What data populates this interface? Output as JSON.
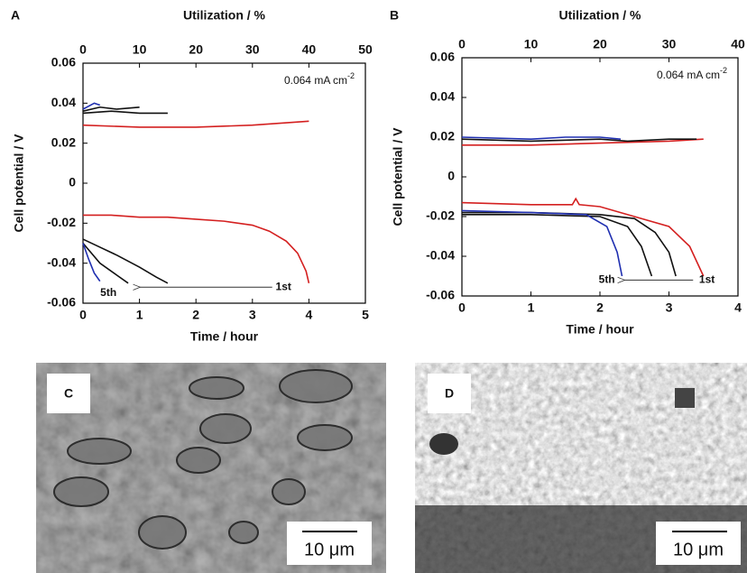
{
  "chart_data": [
    {
      "type": "line",
      "panel": "A",
      "x2_label": "Utilization / %",
      "x_label": "Time / hour",
      "y_label": "Cell potential / V",
      "current_density": {
        "text": "0.064 mA cm",
        "superscript": "-2"
      },
      "annotations": [
        "5th",
        "1st"
      ],
      "xlim": [
        0,
        5
      ],
      "xticks": [
        0,
        1,
        2,
        3,
        4,
        5
      ],
      "x2lim": [
        0,
        50
      ],
      "x2ticks": [
        0,
        10,
        20,
        30,
        40,
        50
      ],
      "ylim": [
        -0.06,
        0.06
      ],
      "yticks": [
        0.06,
        0.04,
        0.02,
        0,
        -0.02,
        -0.04,
        -0.06
      ],
      "series": [
        {
          "color": "#d42020",
          "x": [
            0,
            0.5,
            1,
            1.5,
            2,
            2.5,
            3,
            3.3,
            3.6,
            3.8,
            3.95,
            4
          ],
          "values": [
            -0.016,
            -0.016,
            -0.017,
            -0.017,
            -0.018,
            -0.019,
            -0.021,
            -0.024,
            -0.029,
            -0.035,
            -0.044,
            -0.05
          ]
        },
        {
          "color": "#d42020",
          "x": [
            0,
            1,
            2,
            3,
            4
          ],
          "values": [
            0.029,
            0.028,
            0.028,
            0.029,
            0.031
          ]
        },
        {
          "color": "#111111",
          "x": [
            0,
            0.3,
            0.6,
            1,
            1.3,
            1.5
          ],
          "values": [
            -0.028,
            -0.032,
            -0.036,
            -0.042,
            -0.047,
            -0.05
          ]
        },
        {
          "color": "#111111",
          "x": [
            0,
            0.5,
            1,
            1.5
          ],
          "values": [
            0.035,
            0.036,
            0.035,
            0.035
          ]
        },
        {
          "color": "#111111",
          "x": [
            0,
            0.3,
            0.6,
            0.8
          ],
          "values": [
            -0.03,
            -0.04,
            -0.046,
            -0.05
          ]
        },
        {
          "color": "#111111",
          "x": [
            0,
            0.3,
            0.6,
            1
          ],
          "values": [
            0.036,
            0.038,
            0.037,
            0.038
          ]
        },
        {
          "color": "#1f2fb0",
          "x": [
            0,
            0.1,
            0.2,
            0.3
          ],
          "values": [
            -0.03,
            -0.038,
            -0.045,
            -0.049
          ]
        },
        {
          "color": "#1f2fb0",
          "x": [
            0,
            0.2,
            0.3
          ],
          "values": [
            0.037,
            0.04,
            0.039
          ]
        }
      ]
    },
    {
      "type": "line",
      "panel": "B",
      "x2_label": "Utilization / %",
      "x_label": "Time / hour",
      "y_label": "Cell potential / V",
      "current_density": {
        "text": "0.064 mA cm",
        "superscript": "-2"
      },
      "annotations": [
        "5th",
        "1st"
      ],
      "xlim": [
        0,
        4
      ],
      "xticks": [
        0,
        1,
        2,
        3,
        4
      ],
      "x2lim": [
        0,
        40
      ],
      "x2ticks": [
        0,
        10,
        20,
        30,
        40
      ],
      "ylim": [
        -0.06,
        0.06
      ],
      "yticks": [
        0.06,
        0.04,
        0.02,
        0,
        -0.02,
        -0.04,
        -0.06
      ],
      "series": [
        {
          "color": "#d42020",
          "x": [
            0,
            1,
            1.6,
            1.65,
            1.7,
            2,
            2.5,
            3,
            3.3,
            3.5
          ],
          "values": [
            -0.013,
            -0.014,
            -0.014,
            -0.011,
            -0.014,
            -0.015,
            -0.02,
            -0.025,
            -0.035,
            -0.05
          ]
        },
        {
          "color": "#d42020",
          "x": [
            0,
            1,
            2,
            3,
            3.5
          ],
          "values": [
            0.016,
            0.016,
            0.017,
            0.018,
            0.019
          ]
        },
        {
          "color": "#111111",
          "x": [
            0,
            1,
            2,
            2.5,
            2.8,
            3,
            3.1
          ],
          "values": [
            -0.018,
            -0.018,
            -0.019,
            -0.021,
            -0.028,
            -0.038,
            -0.05
          ]
        },
        {
          "color": "#111111",
          "x": [
            0,
            1,
            2,
            2.4,
            2.6,
            2.75
          ],
          "values": [
            -0.019,
            -0.019,
            -0.02,
            -0.025,
            -0.035,
            -0.05
          ]
        },
        {
          "color": "#111111",
          "x": [
            0,
            1,
            2,
            2.4,
            3,
            3.4
          ],
          "values": [
            0.019,
            0.018,
            0.019,
            0.018,
            0.019,
            0.019
          ]
        },
        {
          "color": "#1f2fb0",
          "x": [
            0,
            1,
            1.8,
            2.1,
            2.25,
            2.32
          ],
          "values": [
            -0.017,
            -0.018,
            -0.019,
            -0.025,
            -0.038,
            -0.05
          ]
        },
        {
          "color": "#1f2fb0",
          "x": [
            0,
            1,
            1.5,
            2,
            2.3
          ],
          "values": [
            0.02,
            0.019,
            0.02,
            0.02,
            0.019
          ]
        }
      ]
    }
  ],
  "panels": [
    {
      "label": "C",
      "scale_bar": "10 μm"
    },
    {
      "label": "D",
      "scale_bar": "10 μm"
    }
  ]
}
